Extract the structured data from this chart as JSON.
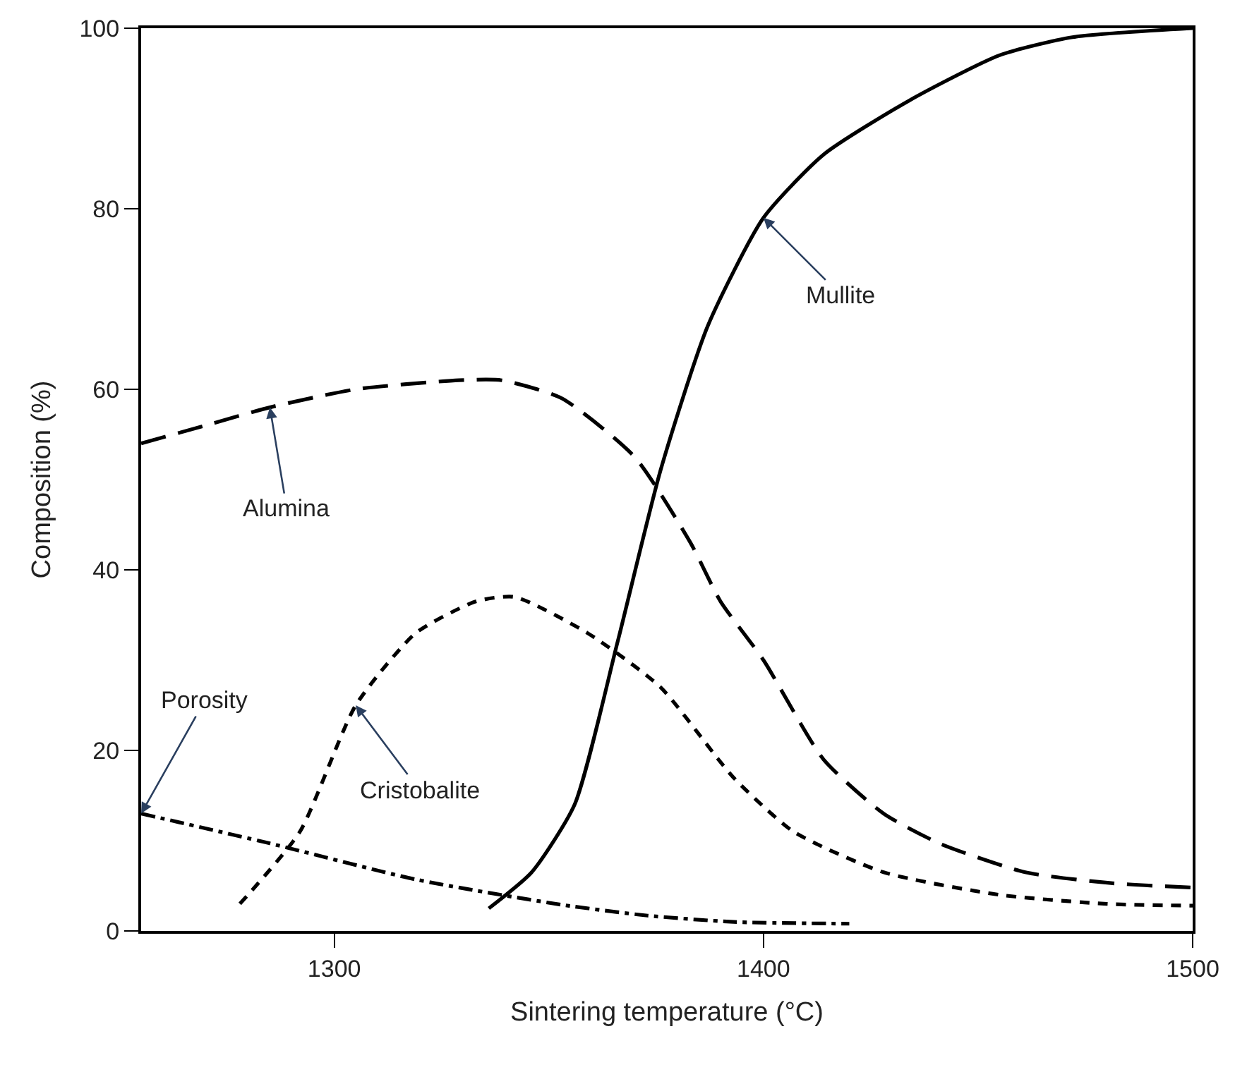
{
  "chart_data": {
    "type": "line",
    "xlabel": "Sintering temperature (°C)",
    "ylabel": "Composition (%)",
    "xlim": [
      1255,
      1500
    ],
    "xticks": [
      1300,
      1400,
      1500
    ],
    "ylim": [
      0,
      100
    ],
    "yticks": [
      0,
      20,
      40,
      60,
      80,
      100
    ],
    "marker": "none",
    "series": [
      {
        "color": "#000000",
        "line_style": "dashed",
        "x": [
          1255,
          1270,
          1285,
          1305,
          1329,
          1339,
          1353,
          1370,
          1383,
          1390,
          1400,
          1414,
          1428,
          1441,
          1461,
          1481,
          1500
        ],
        "values": [
          54,
          56,
          58,
          60,
          61,
          61,
          59,
          52.5,
          43,
          36.5,
          30,
          19,
          13,
          9.7,
          6.5,
          5.3,
          4.8
        ]
      },
      {
        "color": "#000000",
        "line_style": "dotted",
        "x": [
          1278,
          1292,
          1305,
          1319,
          1333,
          1342,
          1359,
          1376,
          1393,
          1407,
          1428,
          1455,
          1480,
          1500
        ],
        "values": [
          3,
          11,
          25,
          33,
          36.5,
          37,
          33,
          27,
          17,
          11,
          6.5,
          4,
          3,
          2.8
        ]
      },
      {
        "color": "#000000",
        "line_style": "solid",
        "x": [
          1336,
          1346,
          1356,
          1366,
          1376,
          1387,
          1400,
          1414,
          1434,
          1455,
          1472,
          1500
        ],
        "values": [
          2.5,
          6.5,
          14,
          32,
          51,
          67,
          79,
          86,
          92,
          97,
          99,
          100
        ]
      },
      {
        "color": "#000000",
        "line_style": "dashdot",
        "x": [
          1255,
          1285,
          1319,
          1353,
          1373,
          1393,
          1420
        ],
        "values": [
          13,
          9.7,
          5.7,
          2.9,
          1.7,
          1,
          0.8
        ]
      }
    ],
    "annotations": [
      {
        "text": "Alumina",
        "x": 1285,
        "y": 58
      },
      {
        "text": "Cristobalite",
        "x": 1305,
        "y": 25
      },
      {
        "text": "Mullite",
        "x": 1400,
        "y": 79
      },
      {
        "text": "Porosity",
        "x": 1255,
        "y": 13
      }
    ]
  }
}
